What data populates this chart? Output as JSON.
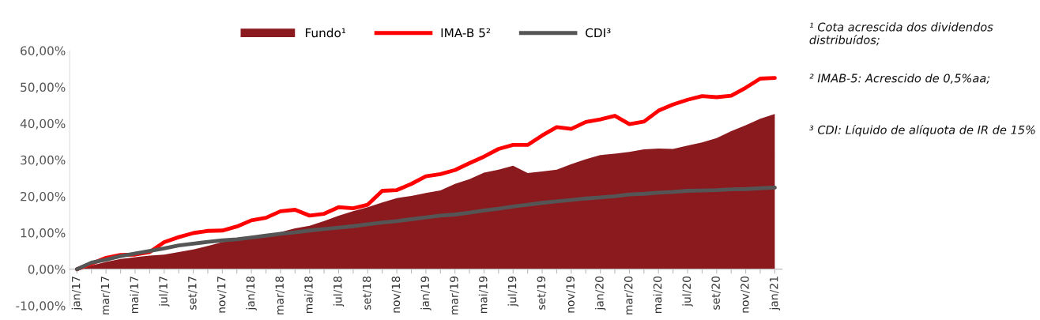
{
  "chart_data": {
    "type": "line",
    "categories": [
      "jan/17",
      null,
      "mar/17",
      null,
      "mai/17",
      null,
      "jul/17",
      null,
      "set/17",
      null,
      "nov/17",
      null,
      "jan/18",
      null,
      "mar/18",
      null,
      "mai/18",
      null,
      "jul/18",
      null,
      "set/18",
      null,
      "nov/18",
      null,
      "jan/19",
      null,
      "mar/19",
      null,
      "mai/19",
      null,
      "jul/19",
      null,
      "set/19",
      null,
      "nov/19",
      null,
      "jan/20",
      null,
      "mar/20",
      null,
      "mai/20",
      null,
      "jul/20",
      null,
      "set/20",
      null,
      "nov/20",
      null,
      "jan/21"
    ],
    "series": [
      {
        "name": "Fundo¹",
        "type": "area",
        "color": "#8b1a1f",
        "values": [
          0.0,
          1.0,
          2.0,
          2.8,
          3.3,
          3.7,
          4.0,
          4.7,
          5.4,
          6.4,
          7.4,
          8.1,
          8.7,
          9.2,
          10.2,
          11.2,
          11.9,
          13.2,
          14.7,
          15.9,
          17.0,
          18.3,
          19.5,
          20.1,
          20.9,
          21.6,
          23.4,
          24.7,
          26.5,
          27.3,
          28.4,
          26.4,
          26.8,
          27.3,
          28.8,
          30.2,
          31.3,
          31.7,
          32.2,
          32.9,
          33.1,
          33.0,
          33.9,
          34.8,
          36.0,
          37.9,
          39.5,
          41.3,
          42.6
        ]
      },
      {
        "name": "IMA-B 5²",
        "color": "#ff0000",
        "values": [
          0.0,
          1.5,
          3.1,
          3.9,
          4.0,
          4.7,
          7.4,
          8.8,
          9.9,
          10.5,
          10.6,
          11.7,
          13.4,
          14.1,
          15.9,
          16.3,
          14.7,
          15.2,
          17.0,
          16.7,
          17.7,
          21.5,
          21.7,
          23.4,
          25.5,
          26.1,
          27.2,
          29.1,
          30.9,
          33.0,
          34.1,
          34.1,
          36.7,
          39.0,
          38.5,
          40.4,
          41.1,
          42.1,
          39.8,
          40.5,
          43.5,
          45.2,
          46.5,
          47.5,
          47.2,
          47.6,
          49.8,
          52.3,
          52.5
        ]
      },
      {
        "name": "CDI³",
        "color": "#555555",
        "values": [
          0.0,
          1.8,
          2.6,
          3.6,
          4.3,
          5.0,
          5.7,
          6.5,
          7.0,
          7.5,
          7.9,
          8.2,
          8.7,
          9.2,
          9.7,
          10.1,
          10.6,
          11.0,
          11.4,
          11.8,
          12.3,
          12.8,
          13.2,
          13.7,
          14.2,
          14.7,
          15.0,
          15.5,
          16.1,
          16.6,
          17.2,
          17.7,
          18.2,
          18.6,
          19.0,
          19.4,
          19.7,
          20.0,
          20.5,
          20.7,
          21.0,
          21.2,
          21.5,
          21.6,
          21.7,
          21.9,
          22.0,
          22.2,
          22.4
        ]
      }
    ],
    "ylim": [
      -10,
      60
    ],
    "yticks": [
      {
        "value": -10,
        "label": "-10,00%"
      },
      {
        "value": 0,
        "label": "0,00%"
      },
      {
        "value": 10,
        "label": "10,00%"
      },
      {
        "value": 20,
        "label": "20,00%"
      },
      {
        "value": 30,
        "label": "30,00%"
      },
      {
        "value": 40,
        "label": "40,00%"
      },
      {
        "value": 50,
        "label": "50,00%"
      },
      {
        "value": 60,
        "label": "60,00%"
      }
    ],
    "grid": false,
    "legend": "top",
    "annotations": [
      "¹ Cota acrescida dos dividendos distribuídos;",
      "² IMAB-5: Acrescido de 0,5%aa;",
      "³ CDI: Líquido de alíquota de IR de 15%"
    ]
  }
}
